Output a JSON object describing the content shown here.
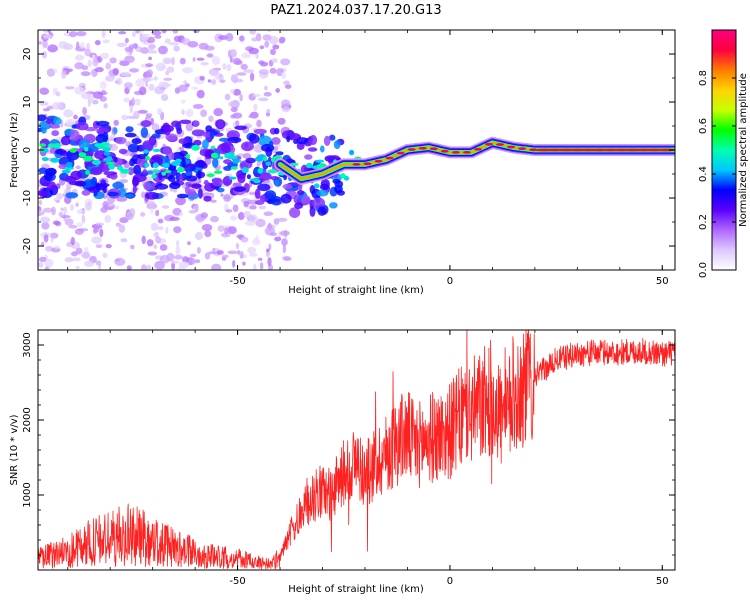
{
  "title": "PAZ1.2024.037.17.20.G13",
  "chart_data": [
    {
      "type": "heatmap",
      "title": "PAZ1.2024.037.17.20.G13",
      "xlabel": "Height of straight line (km)",
      "ylabel": "Frequency (Hz)",
      "xlim": [
        -97,
        53
      ],
      "ylim": [
        -25,
        25
      ],
      "xticks": [
        -50,
        0,
        50
      ],
      "yticks": [
        -20,
        -10,
        0,
        10,
        20
      ],
      "grid": false,
      "colorbar": {
        "label": "Normalized spectral amplitude",
        "range": [
          0,
          1
        ],
        "ticks": [
          "0.0",
          "0.2",
          "0.4",
          "0.6",
          "0.8"
        ],
        "colormap": "gist_rainbow_r",
        "stops": [
          "#ffffff",
          "#dcc8ff",
          "#b066ff",
          "#5a00ff",
          "#0000ff",
          "#00c8ff",
          "#00ffb0",
          "#00ff00",
          "#c8ff00",
          "#ffd200",
          "#ff7a00",
          "#ff0040",
          "#ff0080"
        ]
      },
      "ridge": {
        "description": "dominant frequency vs height",
        "x": [
          -97,
          -90,
          -80,
          -70,
          -60,
          -50,
          -45,
          -40,
          -35,
          -30,
          -25,
          -20,
          -15,
          -10,
          -5,
          0,
          5,
          10,
          15,
          20,
          30,
          40,
          53
        ],
        "y": [
          -1,
          -2,
          -1.5,
          -2.5,
          -2,
          -3,
          -4,
          -3,
          -6,
          -5,
          -3,
          -3,
          -2,
          0,
          0.5,
          -0.5,
          -0.5,
          1.5,
          0.5,
          0,
          0,
          0,
          0
        ]
      }
    },
    {
      "type": "line",
      "title": "",
      "xlabel": "Height of straight line (km)",
      "ylabel": "SNR (10 * v/v)",
      "xlim": [
        -97,
        53
      ],
      "ylim": [
        0,
        3200
      ],
      "xticks": [
        -50,
        0,
        50
      ],
      "yticks": [
        1000,
        2000,
        3000
      ],
      "grid": false,
      "color": "#ff2020",
      "series": [
        {
          "x": [
            -97,
            -90,
            -85,
            -80,
            -75,
            -70,
            -65,
            -60,
            -55,
            -50,
            -45,
            -42,
            -40,
            -38,
            -35,
            -32,
            -30,
            -28,
            -25,
            -22,
            -20,
            -18,
            -15,
            -12,
            -10,
            -8,
            -5,
            -2,
            0,
            3,
            5,
            8,
            10,
            13,
            15,
            18,
            20,
            23,
            25,
            28,
            30,
            35,
            40,
            45,
            50,
            53
          ],
          "values": [
            150,
            250,
            350,
            420,
            480,
            380,
            300,
            220,
            180,
            150,
            100,
            80,
            180,
            450,
            750,
            1000,
            1050,
            1000,
            1300,
            1450,
            1250,
            1400,
            1550,
            1750,
            1800,
            1650,
            1750,
            1800,
            1850,
            2050,
            2100,
            2200,
            2300,
            1950,
            2350,
            2500,
            2600,
            2700,
            2800,
            2850,
            2880,
            2900,
            2900,
            2920,
            2880,
            2900
          ]
        }
      ]
    }
  ]
}
